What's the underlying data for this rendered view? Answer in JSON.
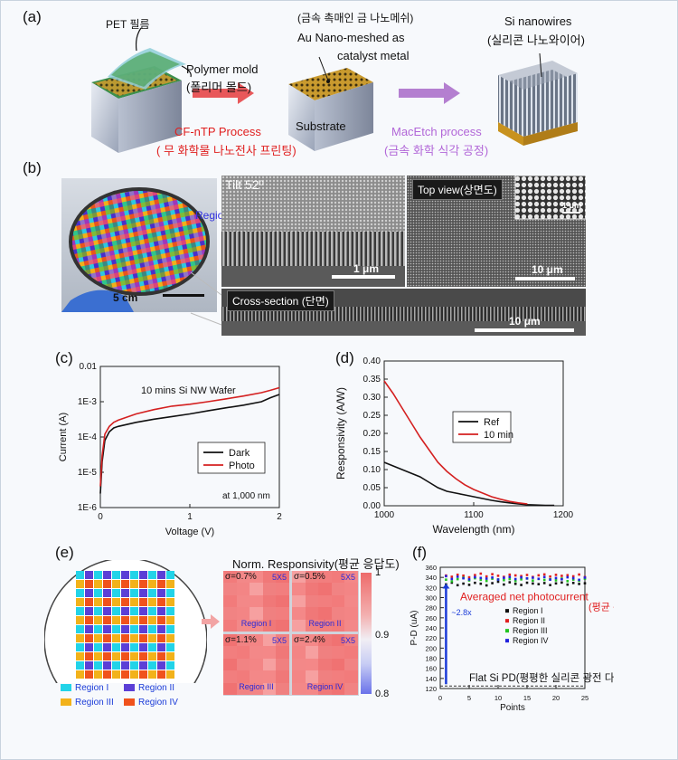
{
  "panels": {
    "a": "(a)",
    "b": "(b)",
    "c": "(c)",
    "d": "(d)",
    "e": "(e)",
    "f": "(f)"
  },
  "panel_a": {
    "pet_film": "PET 필름",
    "polymer_mold": "Polymer mold",
    "polymer_mold_kr": "(폴리머 몰드)",
    "process1": "CF-nTP Process",
    "process1_kr": "( 무 화학물 나노전사 프린팅)",
    "catalyst_kr": "(금속 촉매인 금 나노메쉬)",
    "catalyst_line1": "Au Nano-meshed as",
    "catalyst_line2": "catalyst metal",
    "substrate": "Substrate",
    "process2": "MacEtch process",
    "process2_kr": "(금속 화학 식각 공정)",
    "nanowires": "Si nanowires",
    "nanowires_kr": "(실리콘 나노와이어)",
    "colors": {
      "red_arrow": "#e8585a",
      "purple_arrow": "#b47fd0",
      "red_text": "#e02020",
      "purple_text": "#b267d8"
    }
  },
  "panel_b": {
    "region": "Region I",
    "wafer_scale": "5 cm",
    "tilt": "Tilt 52º",
    "tilt_scale": "1 μm",
    "top_view": "Top view(상면도)",
    "top_scale": "10 μm",
    "inset_scale": "1 μm",
    "cross_section": "Cross-section (단면)",
    "cross_scale": "10 μm"
  },
  "panel_e": {
    "title": "Norm. Responsivity(평균 응답도)",
    "cells": [
      {
        "sigma": "σ=0.7%",
        "grid": "5X5",
        "region": "Region I"
      },
      {
        "sigma": "σ=0.5%",
        "grid": "5X5",
        "region": "Region II"
      },
      {
        "sigma": "σ=1.1%",
        "grid": "5X5",
        "region": "Region III"
      },
      {
        "sigma": "σ=2.4%",
        "grid": "5X5",
        "region": "Region IV"
      }
    ],
    "colorbar_ticks": [
      "1",
      "0.9",
      "0.8"
    ],
    "legend": [
      {
        "label": "Region I",
        "color": "#22d3e8"
      },
      {
        "label": "Region II",
        "color": "#5b3fd6"
      },
      {
        "label": "Region III",
        "color": "#f2b21a"
      },
      {
        "label": "Region IV",
        "color": "#f0521c"
      }
    ]
  },
  "chart_data": [
    {
      "id": "c",
      "type": "line",
      "title": "10 mins Si NW Wafer",
      "annotation": "at 1,000 nm",
      "xlabel": "Voltage (V)",
      "ylabel": "Current (A)",
      "xlim": [
        0,
        2
      ],
      "xticks": [
        "0",
        "1",
        "2"
      ],
      "yscale": "log",
      "ylim": [
        1e-06,
        0.01
      ],
      "yticks": [
        "1E-6",
        "1E-5",
        "1E-4",
        "1E-3",
        "0.01"
      ],
      "legend_position": "center-right",
      "series": [
        {
          "name": "Dark",
          "color": "#111111",
          "x": [
            0,
            0.02,
            0.05,
            0.1,
            0.15,
            0.2,
            0.4,
            0.6,
            0.8,
            1.0,
            1.2,
            1.4,
            1.6,
            1.8,
            1.9,
            2.0
          ],
          "y": [
            2.5e-06,
            2e-05,
            8e-05,
            0.00014,
            0.00018,
            0.0002,
            0.00026,
            0.00032,
            0.00038,
            0.00045,
            0.00055,
            0.00067,
            0.0008,
            0.001,
            0.0013,
            0.0016
          ]
        },
        {
          "name": "Photo",
          "color": "#d42020",
          "x": [
            0,
            0.02,
            0.05,
            0.1,
            0.15,
            0.2,
            0.4,
            0.6,
            0.8,
            1.0,
            1.2,
            1.4,
            1.6,
            1.8,
            1.9,
            2.0
          ],
          "y": [
            4e-06,
            3e-05,
            0.00012,
            0.0002,
            0.00026,
            0.0003,
            0.00045,
            0.0006,
            0.00075,
            0.00085,
            0.001,
            0.0012,
            0.00145,
            0.0018,
            0.0021,
            0.0025
          ]
        }
      ]
    },
    {
      "id": "d",
      "type": "line",
      "xlabel": "Wavelength (nm)",
      "ylabel": "Responsivity (A/W)",
      "xlim": [
        1000,
        1200
      ],
      "xticks": [
        "1000",
        "1100",
        "1200"
      ],
      "ylim": [
        0,
        0.4
      ],
      "yticks": [
        "0.00",
        "0.05",
        "0.10",
        "0.15",
        "0.20",
        "0.25",
        "0.30",
        "0.35",
        "0.40"
      ],
      "legend_position": "center-right",
      "series": [
        {
          "name": "Ref",
          "color": "#111111",
          "x": [
            1000,
            1010,
            1020,
            1030,
            1040,
            1050,
            1060,
            1070,
            1080,
            1090,
            1100,
            1110,
            1120,
            1130,
            1140,
            1150,
            1160,
            1170,
            1180,
            1190
          ],
          "y": [
            0.12,
            0.11,
            0.1,
            0.09,
            0.08,
            0.065,
            0.05,
            0.04,
            0.035,
            0.03,
            0.025,
            0.02,
            0.015,
            0.011,
            0.008,
            0.005,
            0.003,
            0.002,
            0.001,
            0.001
          ]
        },
        {
          "name": "10 min",
          "color": "#d42020",
          "x": [
            1000,
            1010,
            1020,
            1030,
            1040,
            1050,
            1060,
            1070,
            1080,
            1090,
            1100,
            1110,
            1120,
            1130,
            1140,
            1150,
            1160
          ],
          "y": [
            0.345,
            0.31,
            0.27,
            0.23,
            0.19,
            0.155,
            0.12,
            0.095,
            0.075,
            0.058,
            0.045,
            0.035,
            0.025,
            0.018,
            0.012,
            0.008,
            0.005
          ]
        }
      ]
    },
    {
      "id": "f",
      "type": "scatter",
      "xlabel": "Points",
      "ylabel": "P-D (uA)",
      "xlim": [
        0,
        25
      ],
      "xticks": [
        "0",
        "5",
        "10",
        "15",
        "20",
        "25"
      ],
      "ylim": [
        120,
        360
      ],
      "yticks": [
        "120",
        "140",
        "160",
        "180",
        "200",
        "220",
        "240",
        "260",
        "280",
        "300",
        "320",
        "340",
        "360"
      ],
      "legend_position": "center-right",
      "annotation_main": "Averaged net photocurrent",
      "annotation_main_kr": "(평균 순 광전류 )",
      "annotation_gain": "~2.8x",
      "annotation_flat": "Flat Si PD(평평한 실리콘 광전 다이오드)",
      "reference_line": 125,
      "series": [
        {
          "name": "Region I",
          "color": "#111111",
          "mean": 327
        },
        {
          "name": "Region II",
          "color": "#e02020",
          "mean": 343
        },
        {
          "name": "Region III",
          "color": "#22c422",
          "mean": 335
        },
        {
          "name": "Region IV",
          "color": "#2222dd",
          "mean": 338
        }
      ]
    }
  ]
}
